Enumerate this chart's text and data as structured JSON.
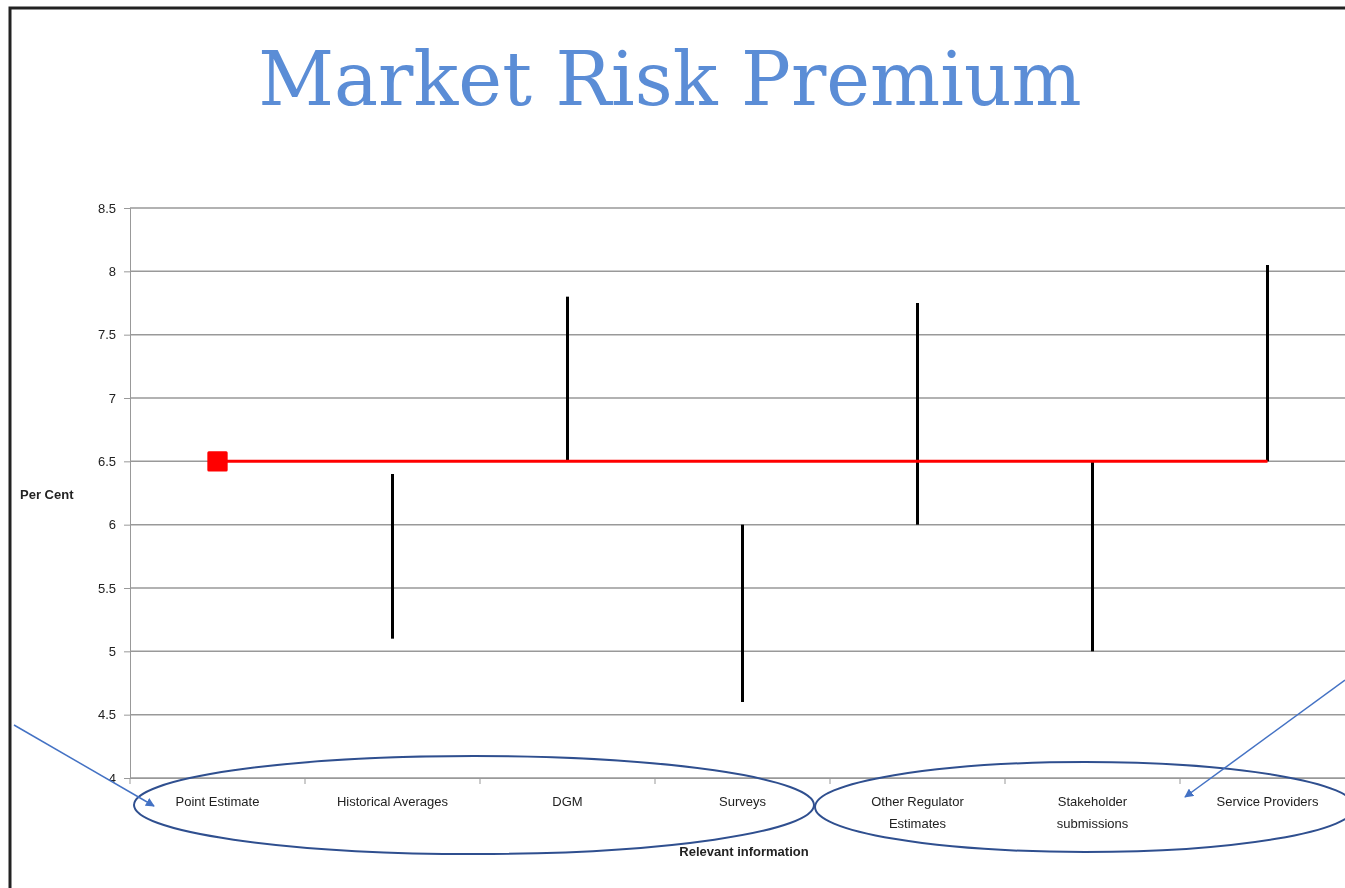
{
  "chart_data": {
    "type": "bar",
    "title": "Market Risk Premium",
    "xlabel": "Relevant information",
    "ylabel": "Per Cent",
    "categories": [
      "Point Estimate",
      "Historical Averages",
      "DGM",
      "Surveys",
      "Other Regulator Estimates",
      "Stakeholder submissions",
      "Service Providers"
    ],
    "series": [
      {
        "color": "#000000",
        "base": [
          null,
          5.1,
          6.5,
          4.6,
          6.0,
          5.0,
          6.5
        ],
        "values": [
          null,
          1.3,
          1.3,
          1.4,
          1.75,
          1.5,
          1.55
        ]
      },
      {
        "type": "line",
        "color": "#ff0000",
        "values": [
          6.5,
          6.5,
          6.5,
          6.5,
          6.5,
          6.5,
          6.5
        ]
      },
      {
        "type": "scatter",
        "color": "#ff0000",
        "marker": "square",
        "values": [
          6.5,
          null,
          null,
          null,
          null,
          null,
          null
        ]
      }
    ],
    "ylim": [
      4,
      8.5
    ],
    "yticks": [
      4,
      4.5,
      5,
      5.5,
      6,
      6.5,
      7,
      7.5,
      8,
      8.5
    ],
    "grid": "y"
  }
}
